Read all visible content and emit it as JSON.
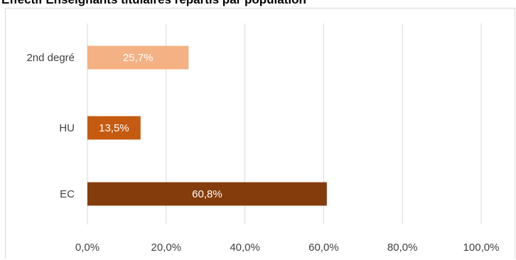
{
  "chart_data": {
    "type": "bar",
    "orientation": "horizontal",
    "title": "Effectif Enseignants titulaires répartis par population",
    "categories": [
      "EC",
      "HU",
      "2nd degré"
    ],
    "values": [
      60.8,
      13.5,
      25.7
    ],
    "value_labels": [
      "60,8%",
      "13,5%",
      "25,7%"
    ],
    "bar_colors": [
      "#843C0C",
      "#C55A11",
      "#F4B183"
    ],
    "xlim": [
      0,
      100
    ],
    "xticks": [
      0,
      20,
      40,
      60,
      80,
      100
    ],
    "xtick_labels": [
      "0,0%",
      "20,0%",
      "40,0%",
      "60,0%",
      "80,0%",
      "100,0%"
    ],
    "xlabel": "",
    "ylabel": "",
    "grid": "vertical",
    "legend": "none"
  }
}
